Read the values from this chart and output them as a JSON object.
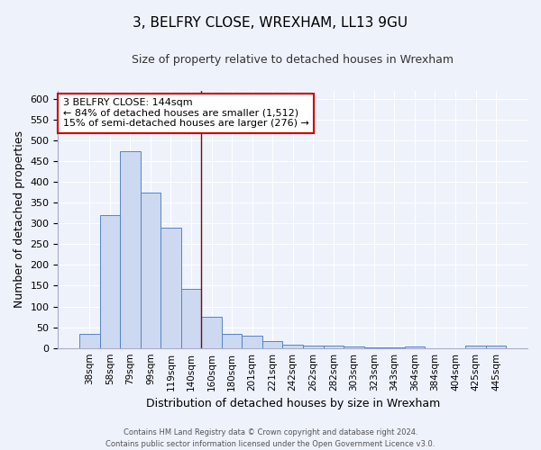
{
  "title": "3, BELFRY CLOSE, WREXHAM, LL13 9GU",
  "subtitle": "Size of property relative to detached houses in Wrexham",
  "xlabel": "Distribution of detached houses by size in Wrexham",
  "ylabel": "Number of detached properties",
  "categories": [
    "38sqm",
    "58sqm",
    "79sqm",
    "99sqm",
    "119sqm",
    "140sqm",
    "160sqm",
    "180sqm",
    "201sqm",
    "221sqm",
    "242sqm",
    "262sqm",
    "282sqm",
    "303sqm",
    "323sqm",
    "343sqm",
    "364sqm",
    "384sqm",
    "404sqm",
    "425sqm",
    "445sqm"
  ],
  "values": [
    33,
    320,
    473,
    375,
    290,
    143,
    75,
    33,
    30,
    17,
    8,
    5,
    5,
    4,
    1,
    1,
    4,
    0,
    0,
    5,
    5
  ],
  "bar_color": "#ccd9f0",
  "bar_edge_color": "#5585c8",
  "vline_x_index": 5.5,
  "vline_color": "#8b0000",
  "annotation_text": "3 BELFRY CLOSE: 144sqm\n← 84% of detached houses are smaller (1,512)\n15% of semi-detached houses are larger (276) →",
  "annotation_box_color": "white",
  "annotation_box_edge_color": "#cc0000",
  "ylim": [
    0,
    620
  ],
  "yticks": [
    0,
    50,
    100,
    150,
    200,
    250,
    300,
    350,
    400,
    450,
    500,
    550,
    600
  ],
  "footer_line1": "Contains HM Land Registry data © Crown copyright and database right 2024.",
  "footer_line2": "Contains public sector information licensed under the Open Government Licence v3.0.",
  "background_color": "#eef2fb",
  "grid_color": "white",
  "title_fontsize": 11,
  "subtitle_fontsize": 9
}
